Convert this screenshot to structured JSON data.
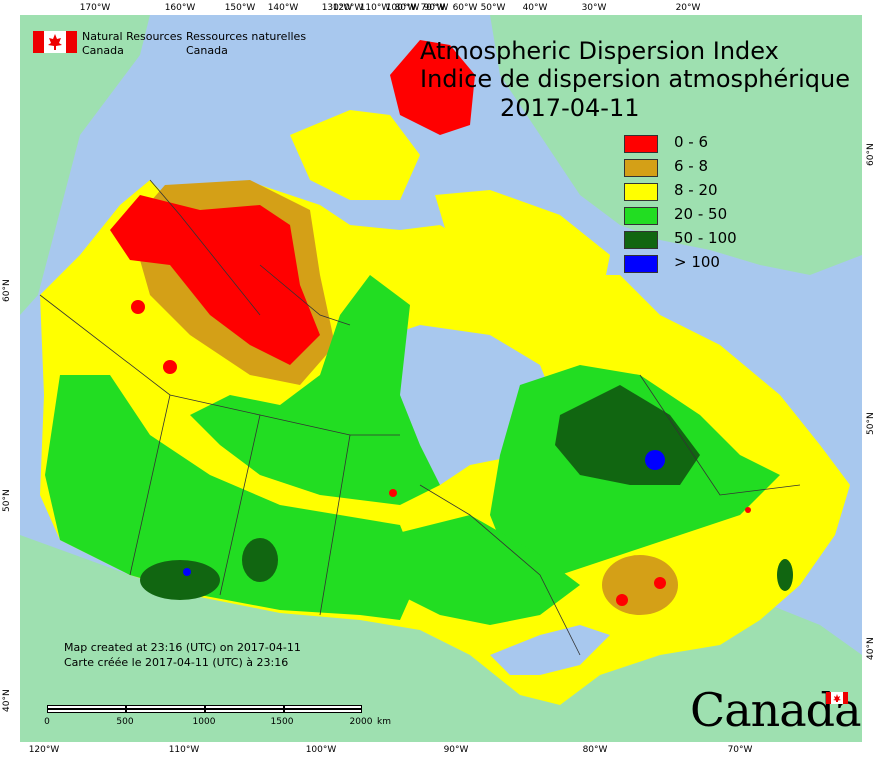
{
  "title_en": "Atmospheric Dispersion Index",
  "title_fr": "Indice de dispersion atmosphérique",
  "date": "2017-04-11",
  "department_en": [
    "Natural Resources",
    "Canada"
  ],
  "department_fr": [
    "Ressources naturelles",
    "Canada"
  ],
  "legend": [
    {
      "label": "0 - 6",
      "color": "#ff0000"
    },
    {
      "label": "6 - 8",
      "color": "#d4a017"
    },
    {
      "label": "8 - 20",
      "color": "#ffff00"
    },
    {
      "label": "20 - 50",
      "color": "#22dd22"
    },
    {
      "label": "50 - 100",
      "color": "#116611"
    },
    {
      "label": "> 100",
      "color": "#0000ff"
    }
  ],
  "credits": [
    "Map created at 23:16 (UTC) on 2017-04-11",
    "Carte créée le 2017-04-11 (UTC) à 23:16"
  ],
  "scale": {
    "labels": [
      "0",
      "500",
      "1000",
      "1500",
      "2000"
    ],
    "unit": "km"
  },
  "wordmark": "Canada",
  "graticule": {
    "top": [
      "170°W",
      "160°W",
      "150°W",
      "140°W",
      "130°W",
      "120°W",
      "110°W",
      "100°W",
      "90°W",
      "80°W",
      "70°W",
      "60°W",
      "50°W",
      "40°W",
      "30°W",
      "20°W"
    ],
    "bottom": [
      "120°W",
      "110°W",
      "100°W",
      "90°W",
      "80°W",
      "70°W"
    ],
    "left": [
      "60°N",
      "50°N",
      "40°N"
    ],
    "right": [
      "60°N",
      "50°N",
      "40°N"
    ]
  },
  "colors": {
    "ocean": "#a8c8ee",
    "land_outside": "#9ee0b0",
    "red": "#ff0000",
    "orange": "#d4a017",
    "yellow": "#ffff00",
    "green": "#22dd22",
    "dark_green": "#116611",
    "blue": "#0000ff"
  }
}
